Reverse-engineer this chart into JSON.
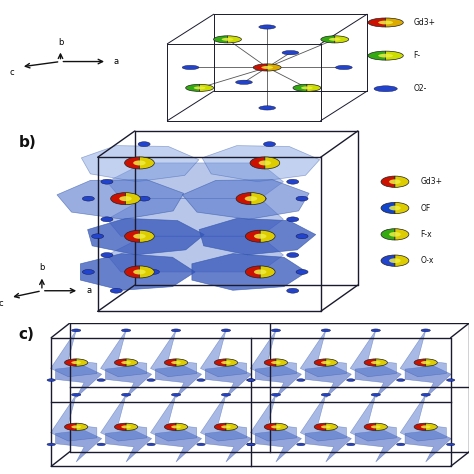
{
  "bg_color": "#ffffff",
  "axis_color": "#111111",
  "cell_line_color": "#1a1a2e",
  "cell_lw": 1.0,
  "poly_color_light": "#7799dd",
  "poly_color_mid": "#5577cc",
  "poly_color_dark": "#3355bb",
  "poly_alpha_light": 0.45,
  "poly_alpha_mid": 0.6,
  "poly_alpha_dark": 0.75,
  "poly_edge_color": "#3355aa",
  "poly_edge_lw": 0.5,
  "atom_gd_color1": "#cc1100",
  "atom_gd_color2": "#ddcc00",
  "atom_of_color1": "#1144cc",
  "atom_of_color2": "#ddcc00",
  "atom_f_color1": "#33aa11",
  "atom_f_color2": "#ddcc00",
  "atom_o_color1": "#2244cc",
  "atom_o_color2": "#ddcc00",
  "atom_vertex_color": "#2244cc",
  "font_size_label": 11,
  "font_size_axis": 6,
  "font_size_legend": 5.5,
  "panel_b_label": "b)",
  "panel_c_label": "c)",
  "legend_b_items": [
    {
      "color1": "#cc1100",
      "color2": "#ddcc00",
      "label": "Gd3+"
    },
    {
      "color1": "#1144cc",
      "color2": "#ddcc00",
      "label": "OF"
    },
    {
      "color1": "#33aa11",
      "color2": "#ddcc00",
      "label": "F-x"
    },
    {
      "color1": "#2244cc",
      "color2": "#ddcc00",
      "label": "O-x"
    }
  ],
  "legend_a_items": [
    {
      "color": "#cc1100",
      "label": "Gd3+"
    },
    {
      "color": "#33aa11",
      "label": "F-"
    },
    {
      "color": "#2244cc",
      "label": "O2-"
    }
  ]
}
